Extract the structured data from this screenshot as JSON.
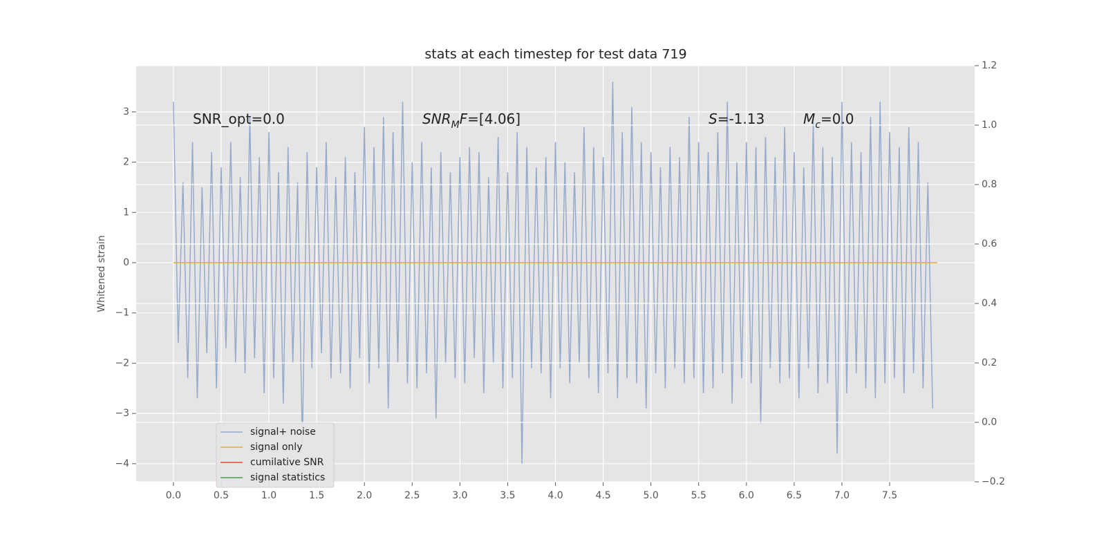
{
  "chart_data": {
    "type": "line",
    "title": "stats at each timestep for test data 719",
    "ylabel": "Whitened strain",
    "xlim": [
      -0.39,
      8.39
    ],
    "ylim": [
      -4.36,
      3.92
    ],
    "y2lim": [
      -0.2,
      1.2
    ],
    "xticks": [
      {
        "value": 0,
        "label": "0.0"
      },
      {
        "value": 0.5,
        "label": "0.5"
      },
      {
        "value": 1,
        "label": "1.0"
      },
      {
        "value": 1.5,
        "label": "1.5"
      },
      {
        "value": 2,
        "label": "2.0"
      },
      {
        "value": 2.5,
        "label": "2.5"
      },
      {
        "value": 3,
        "label": "3.0"
      },
      {
        "value": 3.5,
        "label": "3.5"
      },
      {
        "value": 4,
        "label": "4.0"
      },
      {
        "value": 4.5,
        "label": "4.5"
      },
      {
        "value": 5,
        "label": "5.0"
      },
      {
        "value": 5.5,
        "label": "5.5"
      },
      {
        "value": 6,
        "label": "6.0"
      },
      {
        "value": 6.5,
        "label": "6.5"
      },
      {
        "value": 7,
        "label": "7.0"
      },
      {
        "value": 7.5,
        "label": "7.5"
      }
    ],
    "yticks": [
      {
        "value": -4,
        "label": "−4"
      },
      {
        "value": -3,
        "label": "−3"
      },
      {
        "value": -2,
        "label": "−2"
      },
      {
        "value": -1,
        "label": "−1"
      },
      0,
      1,
      2,
      3
    ],
    "y2ticks": [
      {
        "value": -0.2,
        "label": "−0.2"
      },
      {
        "value": 0,
        "label": "0.0"
      },
      {
        "value": 0.2,
        "label": "0.2"
      },
      {
        "value": 0.4,
        "label": "0.4"
      },
      {
        "value": 0.6,
        "label": "0.6"
      },
      {
        "value": 0.8,
        "label": "0.8"
      },
      {
        "value": 1,
        "label": "1.0"
      },
      {
        "value": 1.2,
        "label": "1.2"
      }
    ],
    "grid": true,
    "legend": "lower left",
    "annotations": [
      [
        {
          "text": "SNR_opt=0.0",
          "style": "normal"
        }
      ],
      [
        {
          "text": "SNR",
          "style": "italic"
        },
        {
          "text": "M",
          "style": "sub"
        },
        {
          "text": "F",
          "style": "italic"
        },
        {
          "text": "=[4.06]",
          "style": "normal"
        }
      ],
      [
        {
          "text": "S",
          "style": "italic"
        },
        {
          "text": "=-1.13",
          "style": "normal"
        }
      ],
      [
        {
          "text": "M",
          "style": "italic"
        },
        {
          "text": "c",
          "style": "sub"
        },
        {
          "text": "=0.0",
          "style": "normal"
        }
      ]
    ],
    "series": [
      {
        "name": "signal+ noise",
        "color": "#97aacc",
        "x": [
          0,
          0.05,
          0.1,
          0.15,
          0.2,
          0.25,
          0.3,
          0.35,
          0.4,
          0.45,
          0.5,
          0.55,
          0.6,
          0.65,
          0.7,
          0.75,
          0.8,
          0.85,
          0.9,
          0.95,
          1,
          1.05,
          1.1,
          1.15,
          1.2,
          1.25,
          1.3,
          1.35,
          1.4,
          1.45,
          1.5,
          1.55,
          1.6,
          1.65,
          1.7,
          1.75,
          1.8,
          1.85,
          1.9,
          1.95,
          2,
          2.05,
          2.1,
          2.15,
          2.2,
          2.25,
          2.3,
          2.35,
          2.4,
          2.45,
          2.5,
          2.55,
          2.6,
          2.65,
          2.7,
          2.75,
          2.8,
          2.85,
          2.9,
          2.95,
          3,
          3.05,
          3.1,
          3.15,
          3.2,
          3.25,
          3.3,
          3.35,
          3.4,
          3.45,
          3.5,
          3.55,
          3.6,
          3.65,
          3.7,
          3.75,
          3.8,
          3.85,
          3.9,
          3.95,
          4,
          4.05,
          4.1,
          4.15,
          4.2,
          4.25,
          4.3,
          4.35,
          4.4,
          4.45,
          4.5,
          4.55,
          4.6,
          4.65,
          4.7,
          4.75,
          4.8,
          4.85,
          4.9,
          4.95,
          5,
          5.05,
          5.1,
          5.15,
          5.2,
          5.25,
          5.3,
          5.35,
          5.4,
          5.45,
          5.5,
          5.55,
          5.6,
          5.65,
          5.7,
          5.75,
          5.8,
          5.85,
          5.9,
          5.95,
          6,
          6.05,
          6.1,
          6.15,
          6.2,
          6.25,
          6.3,
          6.35,
          6.4,
          6.45,
          6.5,
          6.55,
          6.6,
          6.65,
          6.7,
          6.75,
          6.8,
          6.85,
          6.9,
          6.95,
          7,
          7.05,
          7.1,
          7.15,
          7.2,
          7.25,
          7.3,
          7.35,
          7.4,
          7.45,
          7.5,
          7.55,
          7.6,
          7.65,
          7.7,
          7.75,
          7.8,
          7.85,
          7.9,
          7.95
        ],
        "values": [
          3.2,
          -1.6,
          1.6,
          -2.3,
          2.4,
          -2.7,
          1.5,
          -1.8,
          2.2,
          -2.5,
          1.9,
          -1.7,
          2.4,
          -2.0,
          1.7,
          -2.2,
          2.9,
          -1.9,
          2.1,
          -2.6,
          2.6,
          -2.3,
          1.8,
          -2.8,
          2.3,
          -2.0,
          1.6,
          -3.6,
          2.2,
          -2.1,
          1.9,
          -1.8,
          2.4,
          -2.3,
          1.7,
          -2.2,
          2.1,
          -2.5,
          1.8,
          -1.9,
          2.7,
          -2.4,
          2.3,
          -2.1,
          2.9,
          -2.9,
          2.6,
          -2.0,
          3.2,
          -2.4,
          2.0,
          -2.5,
          2.4,
          -2.2,
          1.9,
          -3.1,
          2.2,
          -2.0,
          1.8,
          -2.3,
          2.1,
          -2.4,
          2.3,
          -1.9,
          2.2,
          -2.6,
          1.7,
          -2.0,
          2.5,
          -2.5,
          1.8,
          -2.3,
          2.6,
          -4.0,
          2.3,
          -2.1,
          1.9,
          -2.2,
          2.1,
          -2.7,
          2.4,
          -2.1,
          2.0,
          -2.4,
          1.8,
          -2.0,
          2.7,
          -2.3,
          2.3,
          -2.6,
          2.1,
          -2.2,
          3.6,
          -2.7,
          2.6,
          -2.3,
          3.1,
          -2.4,
          2.4,
          -2.9,
          2.2,
          -2.2,
          1.9,
          -2.5,
          2.3,
          -2.1,
          2.1,
          -2.4,
          2.9,
          -2.3,
          2.4,
          -2.6,
          2.2,
          -2.5,
          2.6,
          -2.2,
          3.2,
          -2.8,
          2.0,
          -2.3,
          2.4,
          -2.4,
          2.3,
          -3.2,
          2.5,
          -2.1,
          2.1,
          -2.4,
          2.7,
          -2.3,
          2.2,
          -2.7,
          1.9,
          -2.1,
          2.8,
          -2.6,
          2.3,
          -2.4,
          2.1,
          -3.8,
          3.2,
          -2.6,
          2.4,
          -2.2,
          2.2,
          -2.5,
          2.9,
          -2.7,
          3.2,
          -2.4,
          2.6,
          -2.3,
          2.3,
          -2.6,
          2.7,
          -2.2,
          2.4,
          -2.5,
          1.6,
          -2.9
        ]
      },
      {
        "name": "signal only",
        "color": "#e8a83a",
        "x": [
          0,
          8
        ],
        "values": [
          0,
          0
        ]
      },
      {
        "name": "cumilative SNR",
        "color": "#e24a33",
        "axis": "y2",
        "x": [],
        "values": []
      },
      {
        "name": "signal statistics",
        "color": "#48a050",
        "axis": "y2",
        "x": [],
        "values": []
      }
    ]
  }
}
